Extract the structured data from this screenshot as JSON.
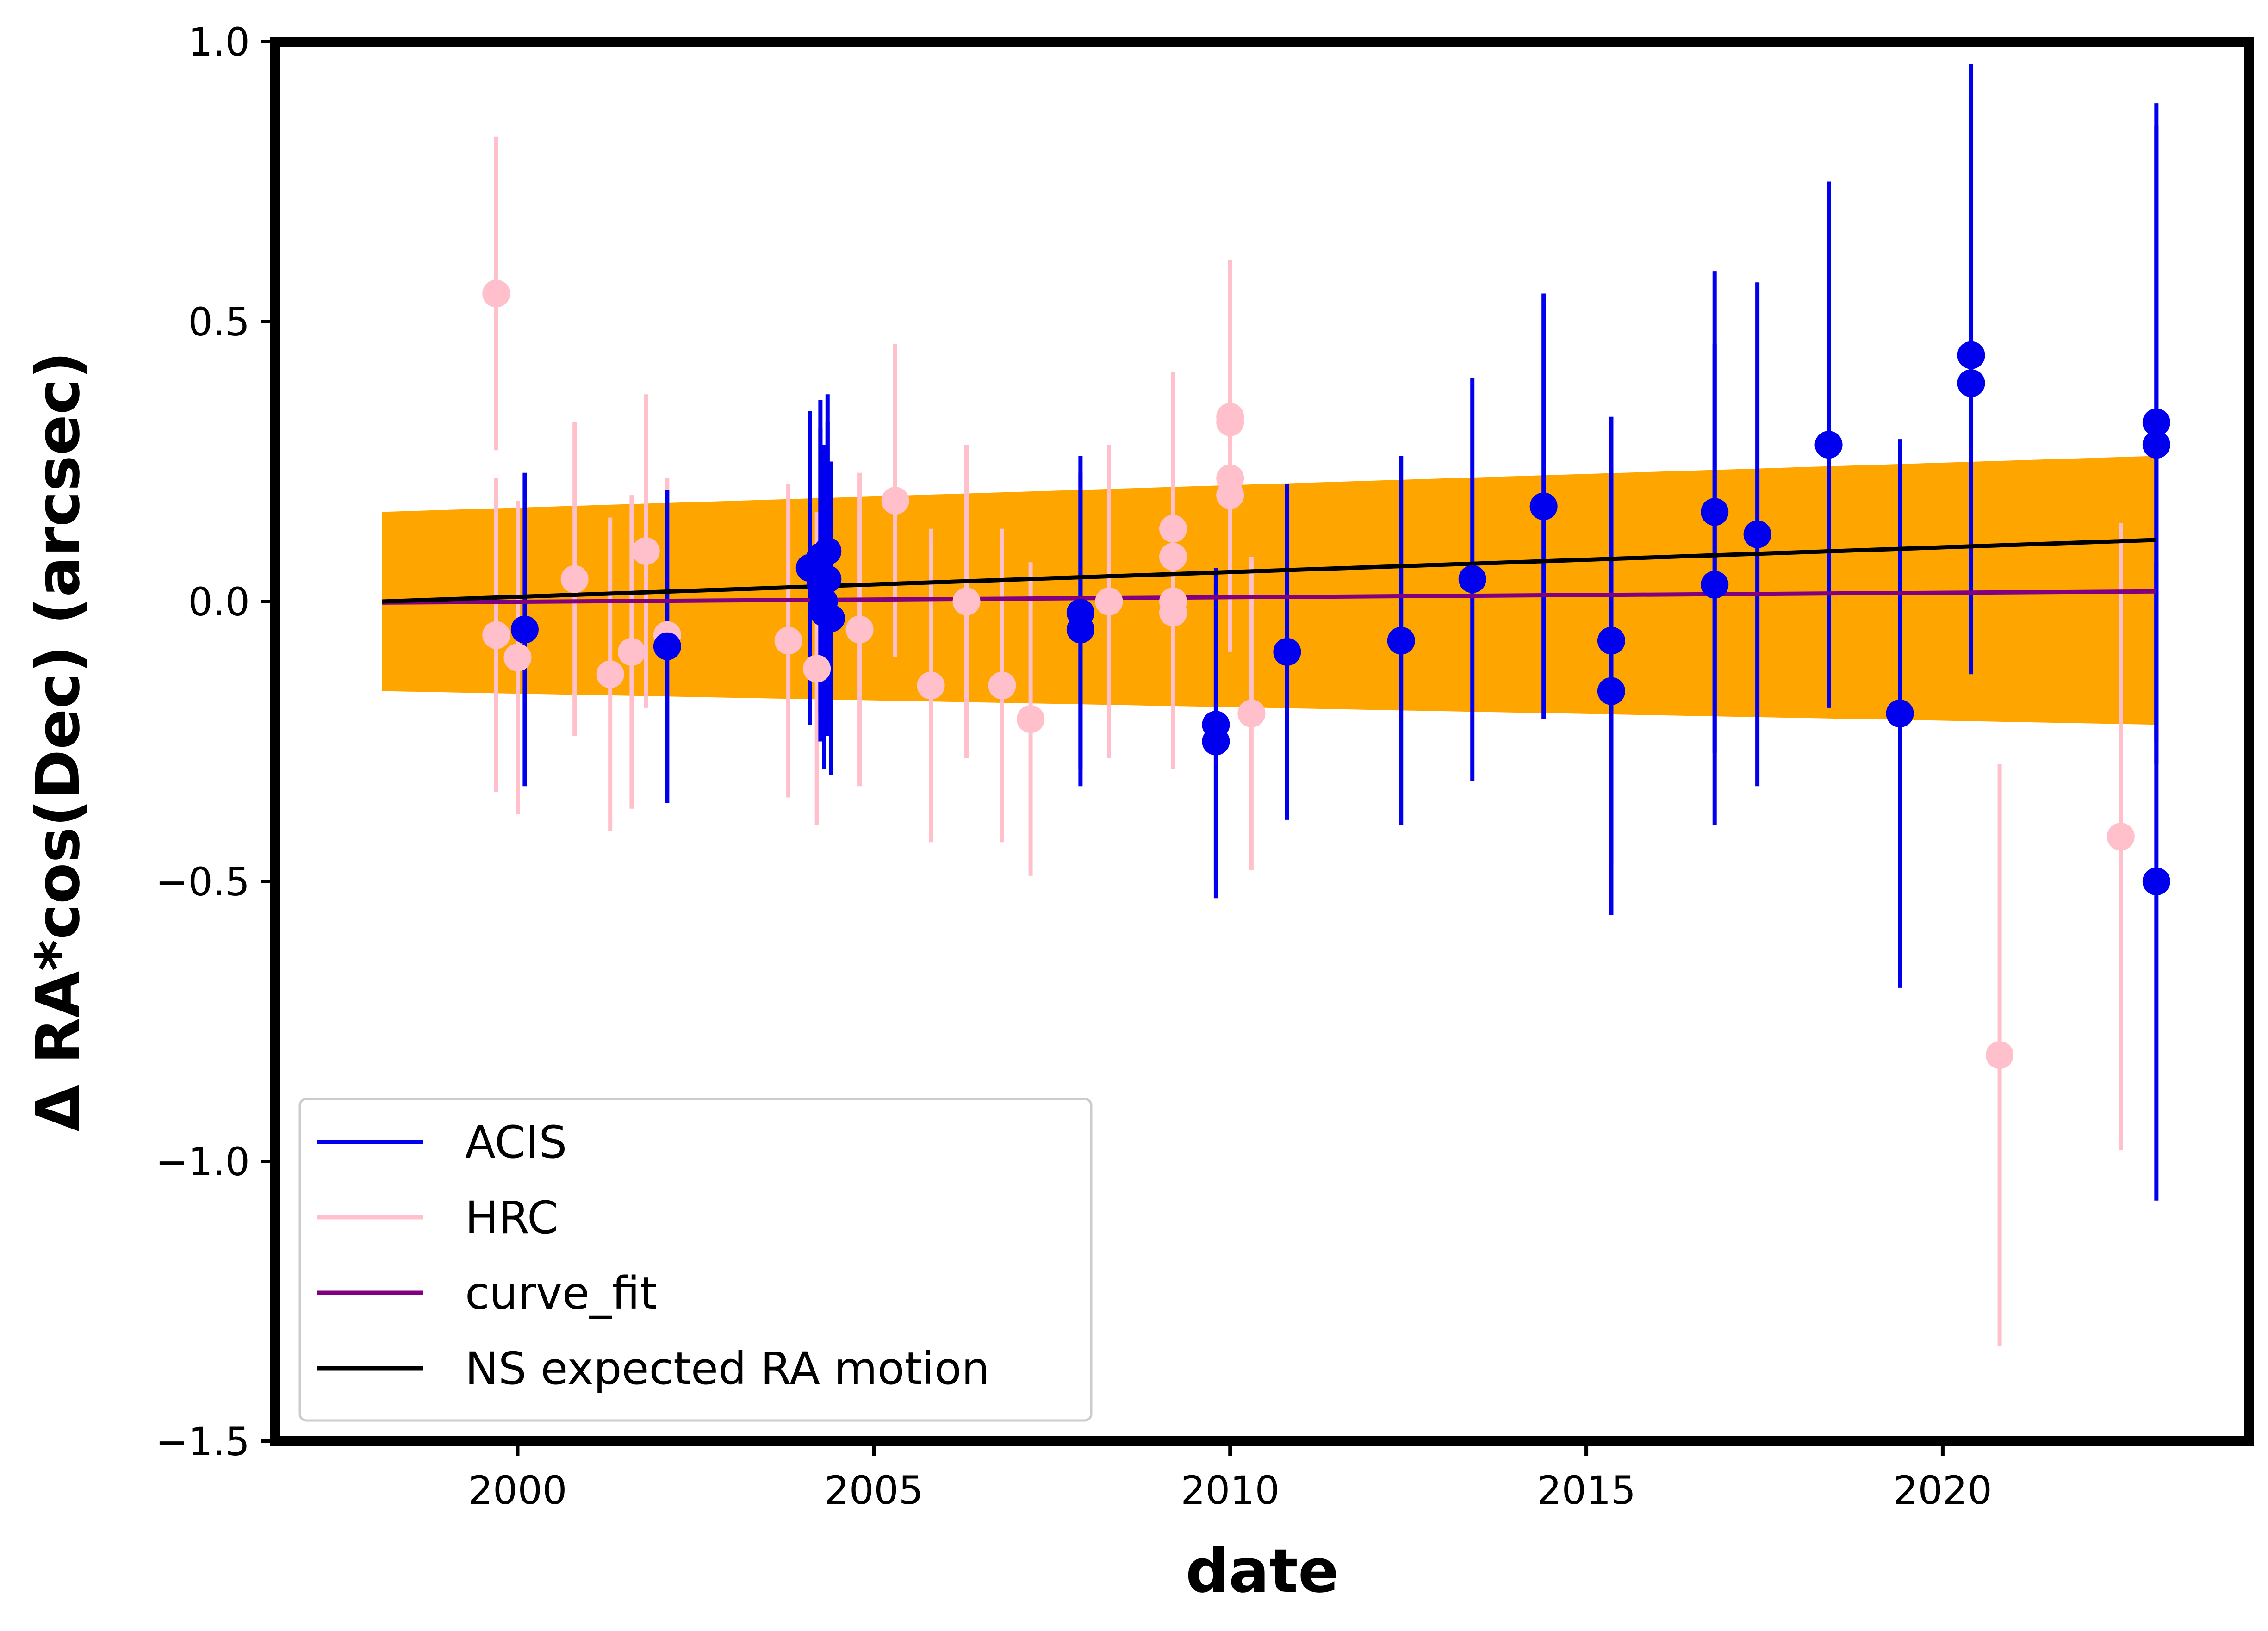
{
  "chart_data": {
    "type": "scatter",
    "title": "",
    "xlabel": "date",
    "ylabel": "Δ RA*cos(Dec) (arcsec)",
    "xlim": [
      1996.6,
      2024.3
    ],
    "ylim": [
      -1.5,
      1.0
    ],
    "x_ticks": [
      2000,
      2005,
      2010,
      2015,
      2020
    ],
    "y_ticks": [
      -1.5,
      -1.0,
      -0.5,
      0.0,
      0.5,
      1.0
    ],
    "y_tick_labels": [
      "−1.5",
      "−1.0",
      "−0.5",
      "0.0",
      "0.5",
      "1.0"
    ],
    "grid": false,
    "legend_position": "lower-left",
    "colors": {
      "ACIS": "#0000ee",
      "HRC": "#ffc0cb",
      "curve_fit": "#800080",
      "NS": "#000000",
      "band": "#ffa500"
    },
    "legend": [
      {
        "label": "ACIS",
        "color": "#0000ee"
      },
      {
        "label": "HRC",
        "color": "#ffc0cb"
      },
      {
        "label": "curve_fit",
        "color": "#800080"
      },
      {
        "label": "NS expected RA motion",
        "color": "#000000"
      }
    ],
    "band": {
      "name": "confidence band",
      "x": [
        1998.1,
        2023.0
      ],
      "upper": [
        0.16,
        0.26
      ],
      "lower": [
        -0.16,
        -0.22
      ]
    },
    "lines": [
      {
        "name": "curve_fit",
        "x": [
          1998.1,
          2023.0
        ],
        "y": [
          -0.002,
          0.018
        ]
      },
      {
        "name": "NS expected RA motion",
        "x": [
          1998.1,
          2023.0
        ],
        "y": [
          0.0,
          0.11
        ]
      }
    ],
    "series": [
      {
        "name": "HRC",
        "points": [
          {
            "x": 1999.7,
            "y": 0.55,
            "err": 0.28
          },
          {
            "x": 1999.7,
            "y": -0.06,
            "err": 0.28
          },
          {
            "x": 2000.0,
            "y": -0.1,
            "err": 0.28
          },
          {
            "x": 2000.8,
            "y": 0.04,
            "err": 0.28
          },
          {
            "x": 2001.3,
            "y": -0.13,
            "err": 0.28
          },
          {
            "x": 2001.6,
            "y": -0.09,
            "err": 0.28
          },
          {
            "x": 2001.8,
            "y": 0.09,
            "err": 0.28
          },
          {
            "x": 2002.1,
            "y": -0.06,
            "err": 0.28
          },
          {
            "x": 2003.8,
            "y": -0.07,
            "err": 0.28
          },
          {
            "x": 2004.2,
            "y": -0.12,
            "err": 0.28
          },
          {
            "x": 2004.8,
            "y": -0.05,
            "err": 0.28
          },
          {
            "x": 2005.3,
            "y": 0.18,
            "err": 0.28
          },
          {
            "x": 2005.8,
            "y": -0.15,
            "err": 0.28
          },
          {
            "x": 2006.3,
            "y": 0.0,
            "err": 0.28
          },
          {
            "x": 2006.8,
            "y": -0.15,
            "err": 0.28
          },
          {
            "x": 2007.2,
            "y": -0.21,
            "err": 0.28
          },
          {
            "x": 2008.3,
            "y": 0.0,
            "err": 0.28
          },
          {
            "x": 2009.2,
            "y": 0.13,
            "err": 0.28
          },
          {
            "x": 2009.2,
            "y": 0.08,
            "err": 0.28
          },
          {
            "x": 2009.2,
            "y": 0.0,
            "err": 0.28
          },
          {
            "x": 2009.2,
            "y": -0.02,
            "err": 0.28
          },
          {
            "x": 2010.0,
            "y": 0.33,
            "err": 0.28
          },
          {
            "x": 2010.0,
            "y": 0.32,
            "err": 0.28
          },
          {
            "x": 2010.0,
            "y": 0.22,
            "err": 0.28
          },
          {
            "x": 2010.0,
            "y": 0.19,
            "err": 0.28
          },
          {
            "x": 2010.3,
            "y": -0.2,
            "err": 0.28
          },
          {
            "x": 2020.8,
            "y": -0.81,
            "err": 0.52
          },
          {
            "x": 2022.5,
            "y": -0.42,
            "err": 0.56
          }
        ]
      },
      {
        "name": "ACIS",
        "points": [
          {
            "x": 2000.1,
            "y": -0.05,
            "err": 0.28
          },
          {
            "x": 2002.1,
            "y": -0.08,
            "err": 0.28
          },
          {
            "x": 2004.1,
            "y": 0.06,
            "err": 0.28
          },
          {
            "x": 2004.25,
            "y": 0.08,
            "err": 0.28
          },
          {
            "x": 2004.25,
            "y": 0.03,
            "err": 0.28
          },
          {
            "x": 2004.3,
            "y": 0.0,
            "err": 0.28
          },
          {
            "x": 2004.3,
            "y": -0.02,
            "err": 0.28
          },
          {
            "x": 2004.35,
            "y": 0.09,
            "err": 0.28
          },
          {
            "x": 2004.35,
            "y": 0.04,
            "err": 0.28
          },
          {
            "x": 2004.4,
            "y": -0.03,
            "err": 0.28
          },
          {
            "x": 2007.9,
            "y": -0.02,
            "err": 0.28
          },
          {
            "x": 2007.9,
            "y": -0.05,
            "err": 0.28
          },
          {
            "x": 2009.8,
            "y": -0.22,
            "err": 0.28
          },
          {
            "x": 2009.8,
            "y": -0.25,
            "err": 0.28
          },
          {
            "x": 2010.8,
            "y": -0.09,
            "err": 0.3
          },
          {
            "x": 2012.4,
            "y": -0.07,
            "err": 0.33
          },
          {
            "x": 2013.4,
            "y": 0.04,
            "err": 0.36
          },
          {
            "x": 2014.4,
            "y": 0.17,
            "err": 0.38
          },
          {
            "x": 2015.35,
            "y": -0.07,
            "err": 0.4
          },
          {
            "x": 2015.35,
            "y": -0.16,
            "err": 0.4
          },
          {
            "x": 2016.8,
            "y": 0.16,
            "err": 0.43
          },
          {
            "x": 2016.8,
            "y": 0.03,
            "err": 0.43
          },
          {
            "x": 2017.4,
            "y": 0.12,
            "err": 0.45
          },
          {
            "x": 2018.4,
            "y": 0.28,
            "err": 0.47
          },
          {
            "x": 2019.4,
            "y": -0.2,
            "err": 0.49
          },
          {
            "x": 2020.4,
            "y": 0.44,
            "err": 0.52
          },
          {
            "x": 2020.4,
            "y": 0.39,
            "err": 0.52
          },
          {
            "x": 2023.0,
            "y": 0.32,
            "err": 0.57
          },
          {
            "x": 2023.0,
            "y": 0.28,
            "err": 0.57
          },
          {
            "x": 2023.0,
            "y": -0.5,
            "err": 0.57
          }
        ]
      }
    ]
  }
}
